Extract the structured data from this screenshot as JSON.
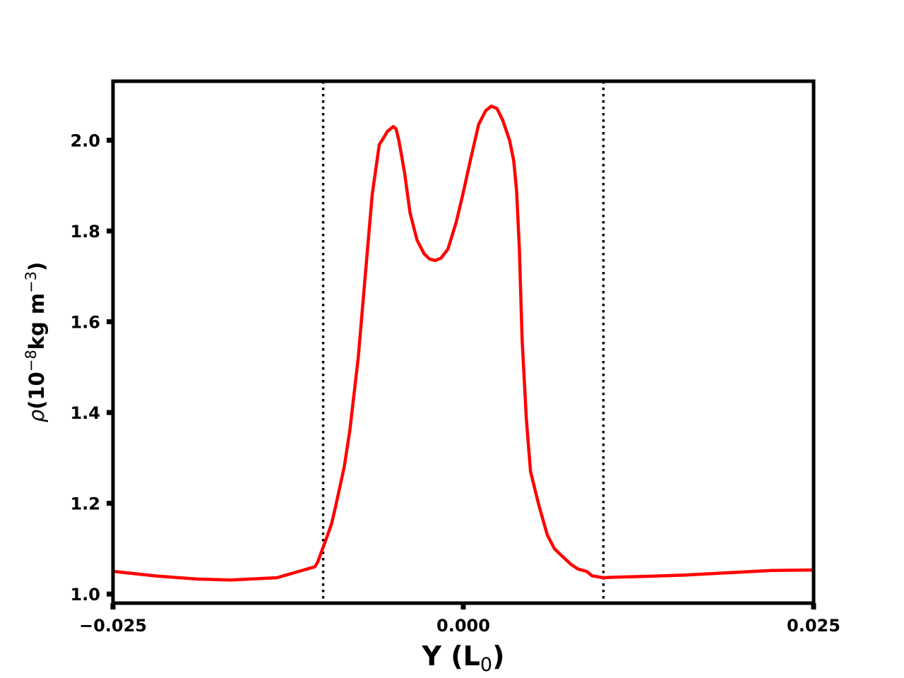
{
  "chart_data": {
    "type": "line",
    "title": "",
    "xlabel": {
      "main": "Y (L",
      "sub": "0",
      "close": ")"
    },
    "ylabel": {
      "rho": "ρ",
      "open": "(10",
      "exp": "−8",
      "mid": "kg m",
      "exp2": "−3",
      "close": ")"
    },
    "xlim": [
      -0.025,
      0.025
    ],
    "ylim": [
      0.98,
      2.13
    ],
    "xticks": [
      -0.025,
      0.0,
      0.025
    ],
    "xtick_labels": [
      "−0.025",
      "0.000",
      "0.025"
    ],
    "yticks": [
      1.0,
      1.2,
      1.4,
      1.6,
      1.8,
      2.0
    ],
    "ytick_labels": [
      "1.0",
      "1.2",
      "1.4",
      "1.6",
      "1.8",
      "2.0"
    ],
    "vlines": [
      -0.01,
      0.01
    ],
    "grid": false,
    "colors": {
      "series": "#ff0000",
      "vlines": "#000000",
      "frame": "#000000"
    },
    "series": [
      {
        "x": [
          -0.025,
          -0.022,
          -0.019,
          -0.0166,
          -0.0133,
          -0.0106,
          -0.0104,
          -0.0098,
          -0.0094,
          -0.0091,
          -0.0085,
          -0.0081,
          -0.0075,
          -0.007,
          -0.0065,
          -0.006,
          -0.0054,
          -0.005,
          -0.0048,
          -0.0046,
          -0.0044,
          -0.0042,
          -0.0038,
          -0.0033,
          -0.0028,
          -0.0024,
          -0.002,
          -0.0016,
          -0.0011,
          -0.0005,
          0.0,
          0.0005,
          0.0011,
          0.0016,
          0.002,
          0.0024,
          0.0028,
          0.0033,
          0.0036,
          0.0038,
          0.004,
          0.0042,
          0.0045,
          0.0048,
          0.0054,
          0.006,
          0.0065,
          0.007,
          0.0077,
          0.0082,
          0.0088,
          0.0092,
          0.0096,
          0.01,
          0.0106,
          0.013,
          0.0158,
          0.019,
          0.022,
          0.025
        ],
        "y": [
          1.05,
          1.04,
          1.033,
          1.031,
          1.036,
          1.06,
          1.07,
          1.12,
          1.155,
          1.195,
          1.28,
          1.36,
          1.52,
          1.7,
          1.88,
          1.99,
          2.02,
          2.03,
          2.025,
          2.0,
          1.965,
          1.93,
          1.84,
          1.78,
          1.75,
          1.738,
          1.735,
          1.74,
          1.76,
          1.82,
          1.885,
          1.955,
          2.035,
          2.065,
          2.075,
          2.07,
          2.045,
          2.0,
          1.955,
          1.89,
          1.76,
          1.56,
          1.385,
          1.27,
          1.195,
          1.13,
          1.1,
          1.085,
          1.065,
          1.055,
          1.05,
          1.04,
          1.038,
          1.036,
          1.037,
          1.039,
          1.042,
          1.047,
          1.052,
          1.053
        ]
      }
    ]
  }
}
